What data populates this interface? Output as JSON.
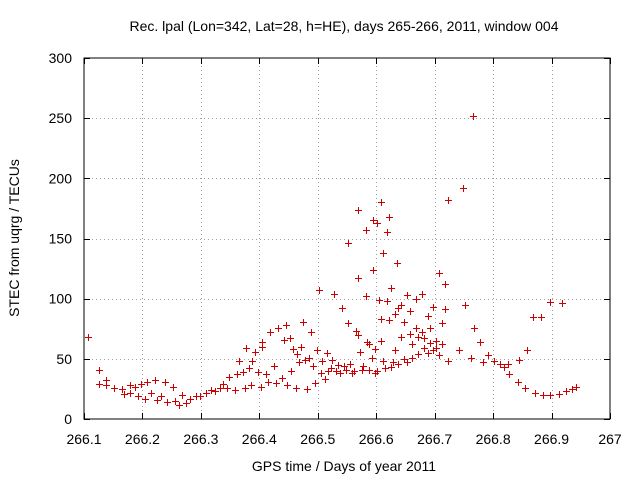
{
  "chart_data": {
    "type": "scatter",
    "title": "Rec. lpal (Lon=342, Lat=28, h=HE), days 265-266, 2011, window 004",
    "xlabel": "GPS time / Days of year 2011",
    "ylabel": "STEC from uqrg / TECUs",
    "xlim": [
      266.1,
      267
    ],
    "ylim": [
      0,
      300
    ],
    "xticks": [
      266.1,
      266.2,
      266.3,
      266.4,
      266.5,
      266.6,
      266.7,
      266.8,
      266.9,
      267
    ],
    "xtick_labels": [
      "266.1",
      "266.2",
      "266.3",
      "266.4",
      "266.5",
      "266.6",
      "266.7",
      "266.8",
      "266.9",
      "267"
    ],
    "yticks": [
      0,
      50,
      100,
      150,
      200,
      250,
      300
    ],
    "ytick_labels": [
      "0",
      "50",
      "100",
      "150",
      "200",
      "250",
      "300"
    ],
    "grid": true,
    "marker": "plus",
    "color": "#cc0000",
    "series": [
      {
        "name": "",
        "points": [
          [
            266.107,
            68
          ],
          [
            266.125,
            41
          ],
          [
            266.125,
            29
          ],
          [
            266.138,
            32
          ],
          [
            266.138,
            28
          ],
          [
            266.152,
            26
          ],
          [
            266.165,
            25
          ],
          [
            266.168,
            21
          ],
          [
            266.178,
            28
          ],
          [
            266.178,
            22
          ],
          [
            266.188,
            27
          ],
          [
            266.192,
            19
          ],
          [
            266.198,
            29
          ],
          [
            266.205,
            17
          ],
          [
            266.208,
            31
          ],
          [
            266.215,
            22
          ],
          [
            266.222,
            32
          ],
          [
            266.225,
            16
          ],
          [
            266.232,
            19
          ],
          [
            266.238,
            31
          ],
          [
            266.242,
            14
          ],
          [
            266.252,
            27
          ],
          [
            266.255,
            15
          ],
          [
            266.262,
            12
          ],
          [
            266.268,
            20
          ],
          [
            266.275,
            13
          ],
          [
            266.282,
            17
          ],
          [
            266.292,
            19
          ],
          [
            266.298,
            19
          ],
          [
            266.308,
            22
          ],
          [
            266.318,
            24
          ],
          [
            266.325,
            23
          ],
          [
            266.332,
            26
          ],
          [
            266.338,
            29
          ],
          [
            266.345,
            26
          ],
          [
            266.348,
            35
          ],
          [
            266.358,
            24
          ],
          [
            266.362,
            37
          ],
          [
            266.365,
            48
          ],
          [
            266.372,
            39
          ],
          [
            266.375,
            26
          ],
          [
            266.378,
            59
          ],
          [
            266.382,
            42
          ],
          [
            266.385,
            28
          ],
          [
            266.388,
            48
          ],
          [
            266.392,
            56
          ],
          [
            266.398,
            39
          ],
          [
            266.402,
            27
          ],
          [
            266.405,
            60
          ],
          [
            266.405,
            64
          ],
          [
            266.412,
            37
          ],
          [
            266.415,
            31
          ],
          [
            266.418,
            72
          ],
          [
            266.425,
            44
          ],
          [
            266.428,
            30
          ],
          [
            266.432,
            76
          ],
          [
            266.438,
            34
          ],
          [
            266.442,
            66
          ],
          [
            266.445,
            78
          ],
          [
            266.448,
            28
          ],
          [
            266.452,
            67
          ],
          [
            266.455,
            40
          ],
          [
            266.458,
            58
          ],
          [
            266.462,
            26
          ],
          [
            266.465,
            54
          ],
          [
            266.468,
            47
          ],
          [
            266.472,
            60
          ],
          [
            266.475,
            81
          ],
          [
            266.478,
            49
          ],
          [
            266.482,
            25
          ],
          [
            266.485,
            51
          ],
          [
            266.488,
            72
          ],
          [
            266.492,
            44
          ],
          [
            266.495,
            30
          ],
          [
            266.498,
            57
          ],
          [
            266.502,
            107
          ],
          [
            266.505,
            38
          ],
          [
            266.508,
            48
          ],
          [
            266.512,
            33
          ],
          [
            266.515,
            55
          ],
          [
            266.518,
            40
          ],
          [
            266.522,
            42
          ],
          [
            266.525,
            49
          ],
          [
            266.528,
            104
          ],
          [
            266.532,
            40
          ],
          [
            266.535,
            45
          ],
          [
            266.538,
            38
          ],
          [
            266.542,
            92
          ],
          [
            266.545,
            44
          ],
          [
            266.548,
            41
          ],
          [
            266.552,
            80
          ],
          [
            266.552,
            146
          ],
          [
            266.555,
            46
          ],
          [
            266.558,
            38
          ],
          [
            266.562,
            40
          ],
          [
            266.565,
            73
          ],
          [
            266.568,
            174
          ],
          [
            266.568,
            117
          ],
          [
            266.568,
            70
          ],
          [
            266.572,
            56
          ],
          [
            266.575,
            41
          ],
          [
            266.578,
            44
          ],
          [
            266.582,
            157
          ],
          [
            266.582,
            102
          ],
          [
            266.585,
            64
          ],
          [
            266.588,
            62
          ],
          [
            266.588,
            41
          ],
          [
            266.592,
            51
          ],
          [
            266.595,
            124
          ],
          [
            266.595,
            165
          ],
          [
            266.598,
            58
          ],
          [
            266.598,
            38
          ],
          [
            266.602,
            163
          ],
          [
            266.602,
            40
          ],
          [
            266.605,
            99
          ],
          [
            266.608,
            180
          ],
          [
            266.608,
            83
          ],
          [
            266.608,
            65
          ],
          [
            266.612,
            138
          ],
          [
            266.612,
            48
          ],
          [
            266.615,
            42
          ],
          [
            266.618,
            155
          ],
          [
            266.618,
            98
          ],
          [
            266.622,
            168
          ],
          [
            266.622,
            82
          ],
          [
            266.625,
            109
          ],
          [
            266.625,
            43
          ],
          [
            266.628,
            47
          ],
          [
            266.632,
            87
          ],
          [
            266.632,
            57
          ],
          [
            266.635,
            130
          ],
          [
            266.638,
            92
          ],
          [
            266.638,
            46
          ],
          [
            266.642,
            95
          ],
          [
            266.642,
            68
          ],
          [
            266.648,
            81
          ],
          [
            266.648,
            50
          ],
          [
            266.652,
            103
          ],
          [
            266.652,
            47
          ],
          [
            266.658,
            90
          ],
          [
            266.658,
            71
          ],
          [
            266.662,
            62
          ],
          [
            266.662,
            51
          ],
          [
            266.668,
            100
          ],
          [
            266.668,
            76
          ],
          [
            266.672,
            54
          ],
          [
            266.672,
            68
          ],
          [
            266.678,
            104
          ],
          [
            266.678,
            72
          ],
          [
            266.682,
            59
          ],
          [
            266.682,
            67
          ],
          [
            266.688,
            86
          ],
          [
            266.688,
            55
          ],
          [
            266.692,
            63
          ],
          [
            266.692,
            76
          ],
          [
            266.698,
            93
          ],
          [
            266.698,
            57
          ],
          [
            266.702,
            59
          ],
          [
            266.702,
            65
          ],
          [
            266.708,
            121
          ],
          [
            266.708,
            53
          ],
          [
            266.712,
            80
          ],
          [
            266.712,
            62
          ],
          [
            266.718,
            112
          ],
          [
            266.718,
            91
          ],
          [
            266.722,
            182
          ],
          [
            266.722,
            48
          ],
          [
            266.742,
            57
          ],
          [
            266.748,
            192
          ],
          [
            266.752,
            95
          ],
          [
            266.762,
            51
          ],
          [
            266.765,
            252
          ],
          [
            266.768,
            76
          ],
          [
            266.778,
            64
          ],
          [
            266.782,
            47
          ],
          [
            266.792,
            53
          ],
          [
            266.802,
            48
          ],
          [
            266.812,
            46
          ],
          [
            266.818,
            43
          ],
          [
            266.825,
            46
          ],
          [
            266.828,
            37
          ],
          [
            266.842,
            31
          ],
          [
            266.845,
            49
          ],
          [
            266.855,
            26
          ],
          [
            266.858,
            57
          ],
          [
            266.868,
            85
          ],
          [
            266.872,
            22
          ],
          [
            266.882,
            85
          ],
          [
            266.885,
            20
          ],
          [
            266.898,
            97
          ],
          [
            266.898,
            20
          ],
          [
            266.912,
            21
          ],
          [
            266.918,
            96
          ],
          [
            266.925,
            23
          ],
          [
            266.935,
            25
          ],
          [
            266.942,
            27
          ]
        ]
      }
    ]
  }
}
